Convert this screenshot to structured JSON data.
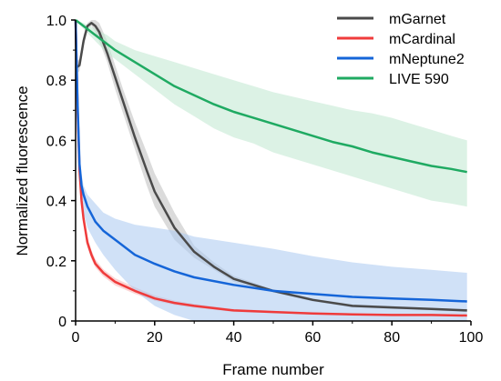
{
  "chart_data": {
    "type": "line",
    "xlabel": "Frame number",
    "ylabel": "Normalized fluorescence",
    "xlim": [
      0,
      100
    ],
    "ylim": [
      0,
      1.0
    ],
    "x_ticks": [
      0,
      20,
      40,
      60,
      80,
      100
    ],
    "y_ticks": [
      0,
      0.2,
      0.4,
      0.6,
      0.8,
      1.0
    ],
    "x_tick_labels": [
      "0",
      "20",
      "40",
      "60",
      "80",
      "100"
    ],
    "y_tick_labels": [
      "0",
      "0.2",
      "0.4",
      "0.6",
      "0.8",
      "1.0"
    ],
    "grid": false,
    "legend_position": "top-right",
    "series": [
      {
        "name": "mGarnet",
        "color": "#4a4a4a",
        "band_color": "#bdbdbd",
        "x": [
          0,
          1,
          2,
          3,
          4,
          5,
          6,
          8,
          10,
          12,
          15,
          18,
          20,
          25,
          30,
          35,
          40,
          50,
          60,
          70,
          80,
          90,
          99
        ],
        "y": [
          0.84,
          0.85,
          0.93,
          0.98,
          0.99,
          0.98,
          0.96,
          0.89,
          0.81,
          0.73,
          0.61,
          0.5,
          0.43,
          0.31,
          0.23,
          0.18,
          0.14,
          0.1,
          0.07,
          0.05,
          0.045,
          0.04,
          0.035
        ],
        "upper": [
          0.86,
          0.87,
          0.95,
          0.99,
          1.0,
          1.0,
          0.99,
          0.93,
          0.85,
          0.77,
          0.66,
          0.56,
          0.49,
          0.36,
          0.25,
          0.195,
          0.15,
          0.105,
          0.075,
          0.055,
          0.05,
          0.043,
          0.04
        ],
        "lower": [
          0.82,
          0.83,
          0.91,
          0.97,
          0.98,
          0.96,
          0.93,
          0.86,
          0.77,
          0.69,
          0.57,
          0.45,
          0.38,
          0.27,
          0.21,
          0.17,
          0.13,
          0.095,
          0.065,
          0.045,
          0.04,
          0.035,
          0.03
        ]
      },
      {
        "name": "mCardinal",
        "color": "#ef3b3b",
        "band_color": "#f8b4b4",
        "x": [
          0,
          0.5,
          1,
          1.5,
          2,
          3,
          4,
          5,
          7,
          10,
          15,
          20,
          25,
          30,
          40,
          50,
          60,
          70,
          80,
          90,
          99
        ],
        "y": [
          1.0,
          0.7,
          0.5,
          0.4,
          0.34,
          0.26,
          0.22,
          0.19,
          0.16,
          0.13,
          0.1,
          0.075,
          0.06,
          0.05,
          0.035,
          0.03,
          0.025,
          0.022,
          0.02,
          0.02,
          0.018
        ],
        "upper": [
          1.0,
          0.72,
          0.52,
          0.42,
          0.36,
          0.28,
          0.235,
          0.205,
          0.172,
          0.142,
          0.112,
          0.085,
          0.068,
          0.057,
          0.04,
          0.034,
          0.028,
          0.025,
          0.023,
          0.022,
          0.02
        ],
        "lower": [
          1.0,
          0.68,
          0.48,
          0.38,
          0.32,
          0.245,
          0.205,
          0.178,
          0.148,
          0.118,
          0.09,
          0.067,
          0.053,
          0.044,
          0.03,
          0.026,
          0.022,
          0.019,
          0.017,
          0.017,
          0.016
        ]
      },
      {
        "name": "mNeptune2",
        "color": "#1565d8",
        "band_color": "#a9c8f0",
        "x": [
          0,
          0.5,
          1,
          1.5,
          2,
          3,
          5,
          7,
          10,
          15,
          20,
          25,
          30,
          40,
          50,
          60,
          70,
          80,
          90,
          99
        ],
        "y": [
          1.0,
          0.72,
          0.52,
          0.45,
          0.42,
          0.38,
          0.33,
          0.3,
          0.27,
          0.22,
          0.19,
          0.165,
          0.145,
          0.12,
          0.1,
          0.09,
          0.08,
          0.075,
          0.07,
          0.065
        ],
        "upper": [
          1.0,
          0.75,
          0.56,
          0.49,
          0.45,
          0.42,
          0.39,
          0.36,
          0.34,
          0.32,
          0.31,
          0.3,
          0.28,
          0.26,
          0.24,
          0.215,
          0.195,
          0.18,
          0.17,
          0.16
        ],
        "lower": [
          1.0,
          0.69,
          0.48,
          0.4,
          0.36,
          0.31,
          0.26,
          0.22,
          0.17,
          0.1,
          0.05,
          0.02,
          0.0,
          0.0,
          0.0,
          0.0,
          0.0,
          0.0,
          0.0,
          0.0
        ]
      },
      {
        "name": "LIVE 590",
        "color": "#1faa62",
        "band_color": "#bfe8d0",
        "x": [
          0,
          2,
          5,
          8,
          10,
          15,
          20,
          25,
          30,
          35,
          40,
          45,
          50,
          55,
          60,
          65,
          70,
          75,
          80,
          85,
          90,
          95,
          99
        ],
        "y": [
          1.0,
          0.98,
          0.95,
          0.92,
          0.9,
          0.86,
          0.82,
          0.78,
          0.75,
          0.72,
          0.695,
          0.675,
          0.655,
          0.635,
          0.615,
          0.595,
          0.58,
          0.56,
          0.545,
          0.53,
          0.515,
          0.505,
          0.495
        ],
        "upper": [
          1.0,
          0.99,
          0.97,
          0.95,
          0.93,
          0.9,
          0.88,
          0.86,
          0.84,
          0.82,
          0.8,
          0.78,
          0.76,
          0.745,
          0.73,
          0.715,
          0.7,
          0.69,
          0.675,
          0.655,
          0.635,
          0.615,
          0.6
        ],
        "lower": [
          1.0,
          0.97,
          0.93,
          0.89,
          0.87,
          0.82,
          0.77,
          0.72,
          0.68,
          0.64,
          0.61,
          0.59,
          0.56,
          0.54,
          0.52,
          0.5,
          0.48,
          0.46,
          0.44,
          0.42,
          0.4,
          0.39,
          0.38
        ]
      }
    ]
  }
}
